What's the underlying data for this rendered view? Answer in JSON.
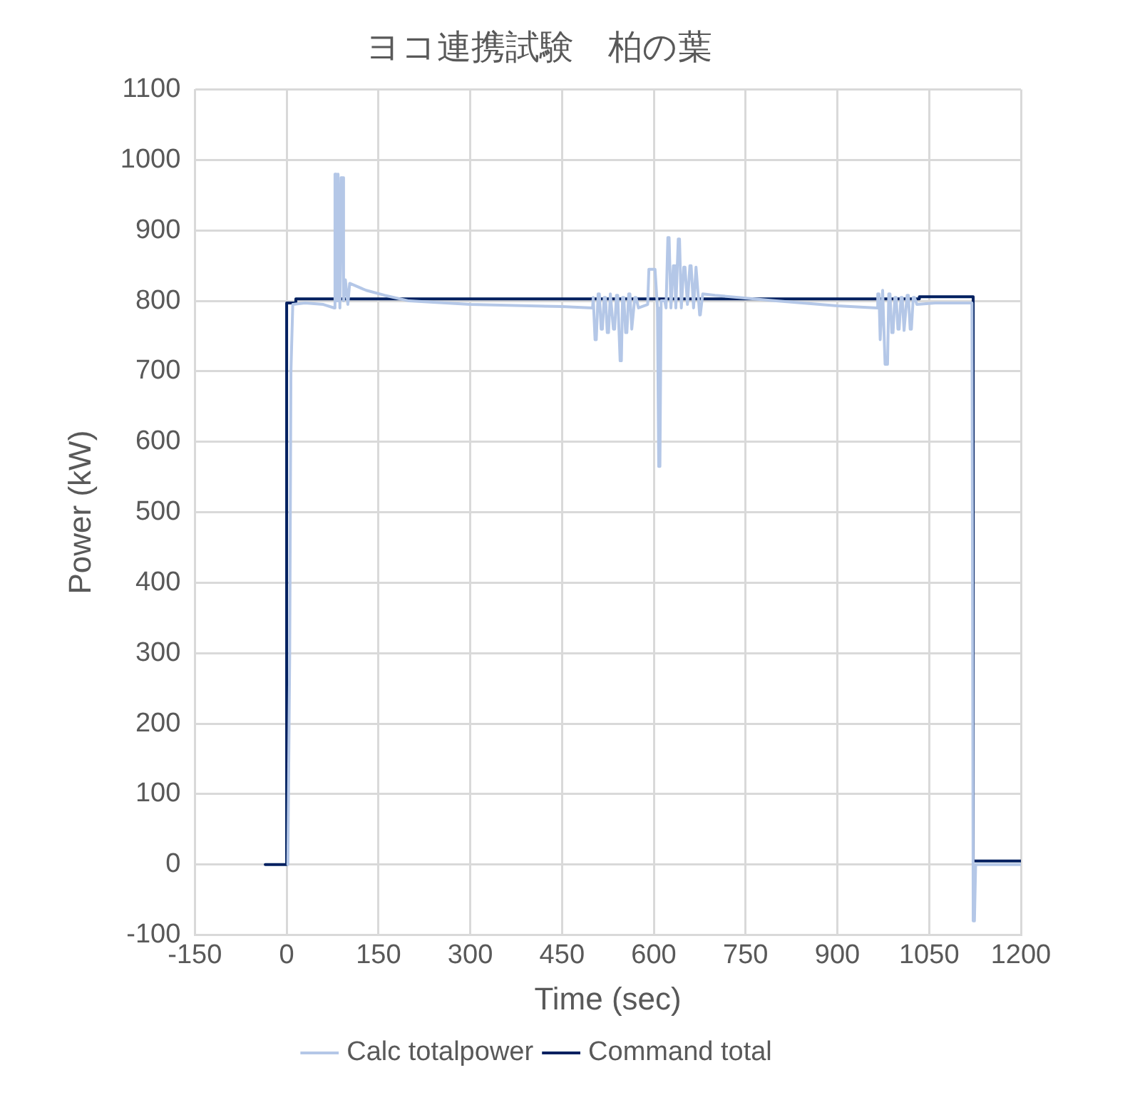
{
  "chart_data": {
    "type": "line",
    "title": "ヨコ連携試験　柏の葉",
    "xlabel": "Time (sec)",
    "ylabel": "Power (kW)",
    "xlim": [
      -150,
      1200
    ],
    "xticks": [
      -150,
      0,
      150,
      300,
      450,
      600,
      750,
      900,
      1050,
      1200
    ],
    "ylim": [
      -100,
      1100
    ],
    "yticks": [
      -100,
      0,
      100,
      200,
      300,
      400,
      500,
      600,
      700,
      800,
      900,
      1000,
      1100
    ],
    "grid": true,
    "legend": "bottom",
    "marker": "none",
    "line_style": "solid",
    "series": [
      {
        "name": "Calc totalpower",
        "color": "#b4c7e7",
        "x": [
          2,
          5,
          7,
          10,
          30,
          60,
          78,
          79,
          81,
          83,
          84,
          86,
          87,
          89,
          91,
          93,
          96,
          97,
          100,
          103,
          104,
          130,
          160,
          200,
          300,
          450,
          500,
          501,
          502,
          504,
          506,
          509,
          511,
          514,
          516,
          519,
          521,
          524,
          526,
          529,
          531,
          534,
          536,
          539,
          541,
          545,
          547,
          549,
          551,
          554,
          556,
          559,
          561,
          564,
          566,
          569,
          571,
          575,
          590,
          592,
          602,
          606,
          608,
          610,
          612,
          618,
          620,
          623,
          625,
          628,
          632,
          634,
          636,
          640,
          642,
          645,
          649,
          651,
          655,
          659,
          661,
          665,
          669,
          671,
          675,
          676,
          680,
          700,
          800,
          900,
          965,
          966,
          968,
          970,
          971,
          974,
          976,
          978,
          982,
          984,
          986,
          989,
          991,
          994,
          996,
          999,
          1001,
          1004,
          1006,
          1009,
          1011,
          1014,
          1016,
          1019,
          1021,
          1024,
          1026,
          1030,
          1060,
          1120,
          1122,
          1124,
          1126,
          1200
        ],
        "values": [
          0,
          300,
          700,
          795,
          797,
          795,
          790,
          980,
          980,
          800,
          980,
          980,
          790,
          975,
          975,
          800,
          830,
          830,
          795,
          825,
          825,
          815,
          808,
          800,
          795,
          792,
          790,
          805,
          805,
          745,
          745,
          810,
          810,
          760,
          760,
          805,
          805,
          755,
          755,
          810,
          810,
          760,
          760,
          808,
          808,
          715,
          715,
          805,
          805,
          755,
          755,
          810,
          810,
          760,
          760,
          805,
          805,
          790,
          795,
          845,
          845,
          790,
          565,
          565,
          800,
          800,
          790,
          890,
          890,
          790,
          850,
          850,
          790,
          888,
          888,
          790,
          848,
          848,
          795,
          850,
          850,
          790,
          848,
          848,
          780,
          780,
          810,
          808,
          800,
          793,
          790,
          810,
          810,
          745,
          745,
          815,
          815,
          710,
          710,
          810,
          810,
          755,
          755,
          805,
          805,
          760,
          760,
          805,
          805,
          758,
          758,
          808,
          808,
          760,
          760,
          805,
          805,
          795,
          797,
          797,
          -80,
          -80,
          0,
          0
        ]
      },
      {
        "name": "Command total",
        "color": "#002060",
        "x": [
          -35,
          0,
          0,
          15,
          15,
          1034,
          1034,
          1122,
          1122,
          1200
        ],
        "values": [
          0,
          0,
          797,
          797,
          803,
          803,
          806,
          806,
          5,
          5
        ]
      }
    ]
  }
}
